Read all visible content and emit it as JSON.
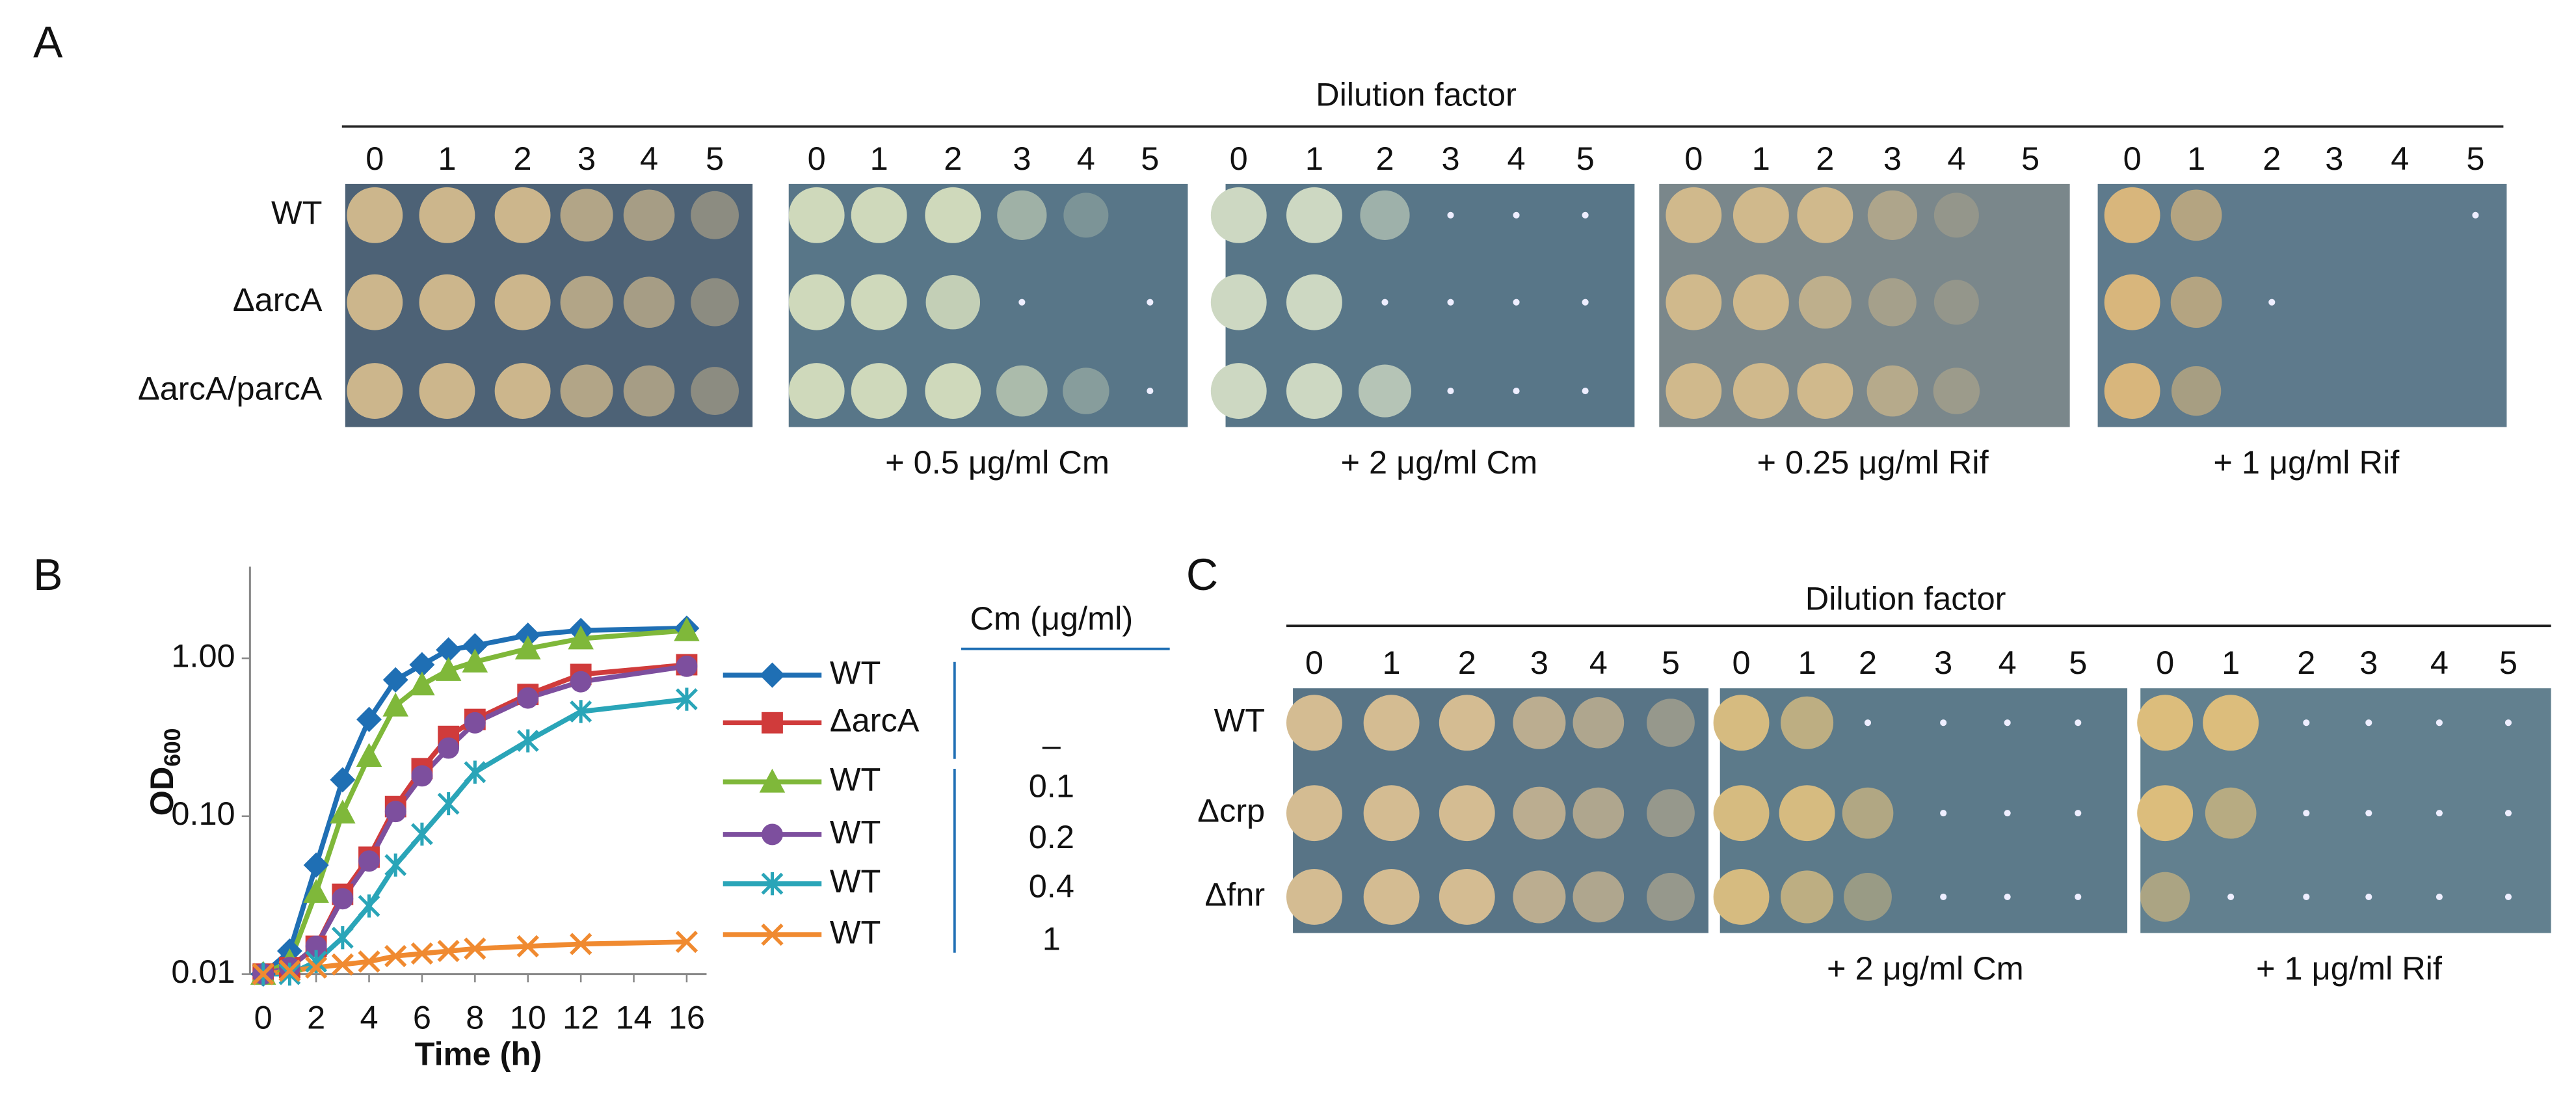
{
  "panel_labels": [
    "A",
    "B",
    "C"
  ],
  "panel_a": {
    "header": "Dilution factor",
    "dilutions": [
      0,
      1,
      2,
      3,
      4,
      5
    ],
    "strains": [
      "WT",
      "ΔarcA",
      "ΔarcA/parcA"
    ],
    "conditions": [
      "+ 0.5 μg/ml Cm",
      "+ 2 μg/ml Cm",
      "+ 0.25 μg/ml Rif",
      "+ 1 μg/ml Rif"
    ]
  },
  "panel_c": {
    "header": "Dilution factor",
    "dilutions": [
      0,
      1,
      2,
      3,
      4,
      5
    ],
    "strains": [
      "WT",
      "Δcrp",
      "Δfnr"
    ],
    "conditions": [
      "+ 2 μg/ml Cm",
      "+ 1 μg/ml Rif"
    ]
  },
  "chart_data": {
    "type": "line",
    "x_label": "Time (h)",
    "y_label": "OD",
    "y_label_subscript": "600",
    "log_y": true,
    "legend_title": "Cm (μg/ml)",
    "legend_group_labels": [
      "–",
      "0.1",
      "0.2",
      "0.4",
      "1"
    ],
    "x": [
      0,
      1,
      2,
      3,
      4,
      5,
      6,
      7,
      8,
      10,
      12,
      16
    ],
    "xlim": [
      -0.5,
      16.75
    ],
    "xticks": [
      0,
      2,
      4,
      6,
      8,
      10,
      12,
      14,
      16
    ],
    "ylim": [
      0.01,
      3.8
    ],
    "yticks": [
      0.01,
      {
        "value": 0.1,
        "label": "0.10"
      },
      {
        "value": 1,
        "label": "1.00"
      }
    ],
    "series": [
      {
        "name": "WT",
        "color": "#1f6fb4",
        "marker": "diamond",
        "values": [
          0.01,
          0.014,
          0.049,
          0.17,
          0.41,
          0.73,
          0.91,
          1.13,
          1.2,
          1.4,
          1.5,
          1.55
        ]
      },
      {
        "name": "ΔarcA",
        "color": "#d03b3b",
        "marker": "square",
        "values": [
          0.01,
          0.011,
          0.015,
          0.032,
          0.055,
          0.115,
          0.2,
          0.32,
          0.41,
          0.59,
          0.79,
          0.91
        ]
      },
      {
        "name": "WT",
        "color": "#7fb83a",
        "marker": "triangle",
        "values": [
          0.01,
          0.012,
          0.033,
          0.105,
          0.24,
          0.5,
          0.68,
          0.84,
          0.95,
          1.15,
          1.33,
          1.5
        ]
      },
      {
        "name": "WT",
        "color": "#7d4f9e",
        "marker": "circle",
        "values": [
          0.01,
          0.011,
          0.015,
          0.03,
          0.052,
          0.107,
          0.18,
          0.27,
          0.39,
          0.56,
          0.71,
          0.89
        ]
      },
      {
        "name": "WT",
        "color": "#2aa5b8",
        "marker": "star",
        "values": [
          0.01,
          0.01,
          0.012,
          0.017,
          0.027,
          0.049,
          0.077,
          0.12,
          0.19,
          0.3,
          0.46,
          0.55
        ]
      },
      {
        "name": "WT",
        "color": "#f08a30",
        "marker": "x",
        "values": [
          0.01,
          0.0105,
          0.011,
          0.0115,
          0.012,
          0.013,
          0.0135,
          0.014,
          0.0145,
          0.015,
          0.0155,
          0.016
        ]
      }
    ]
  }
}
